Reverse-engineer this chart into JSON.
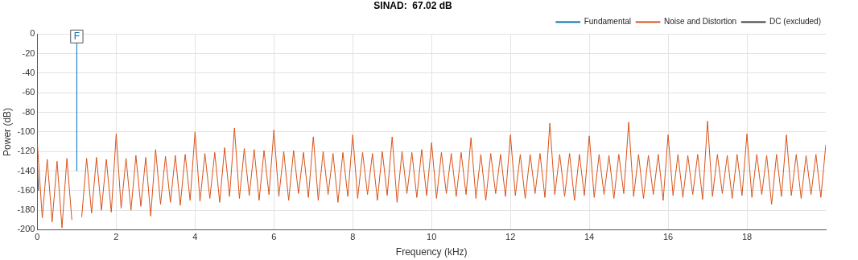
{
  "chart_data": {
    "type": "line",
    "title": "SINAD:  67.02 dB",
    "xlabel": "Frequency (kHz)",
    "ylabel": "Power (dB)",
    "xlim": [
      0,
      20
    ],
    "xticks": [
      0,
      2,
      4,
      6,
      8,
      10,
      12,
      14,
      16,
      18
    ],
    "ylim": [
      -200,
      0
    ],
    "yticks": [
      -200,
      -180,
      -160,
      -140,
      -120,
      -100,
      -80,
      -60,
      -40,
      -20,
      0
    ],
    "grid": true,
    "legend": "top right",
    "marker": "none",
    "line_style": "solid",
    "annotations": [
      {
        "text": "F",
        "x": 1,
        "y": -9
      }
    ],
    "series": [
      {
        "name": "Fundamental",
        "color": "#0072bd",
        "x": [
          1,
          1
        ],
        "values": [
          -140,
          -9
        ]
      },
      {
        "name": "Noise and Distortion",
        "color": "#d95319",
        "x": [
          0,
          0.125,
          0.25,
          0.375,
          0.5,
          0.625,
          0.75,
          0.875,
          1,
          1.125,
          1.25,
          1.375,
          1.5,
          1.625,
          1.75,
          1.875,
          2,
          2.125,
          2.25,
          2.375,
          2.5,
          2.625,
          2.75,
          2.875,
          3,
          3.125,
          3.25,
          3.375,
          3.5,
          3.625,
          3.75,
          3.875,
          4,
          4.125,
          4.25,
          4.375,
          4.5,
          4.625,
          4.75,
          4.875,
          5,
          5.125,
          5.25,
          5.375,
          5.5,
          5.625,
          5.75,
          5.875,
          6,
          6.125,
          6.25,
          6.375,
          6.5,
          6.625,
          6.75,
          6.875,
          7,
          7.125,
          7.25,
          7.375,
          7.5,
          7.625,
          7.75,
          7.875,
          8,
          8.125,
          8.25,
          8.375,
          8.5,
          8.625,
          8.75,
          8.875,
          9,
          9.125,
          9.25,
          9.375,
          9.5,
          9.625,
          9.75,
          9.875,
          10,
          10.125,
          10.25,
          10.375,
          10.5,
          10.625,
          10.75,
          10.875,
          11,
          11.125,
          11.25,
          11.375,
          11.5,
          11.625,
          11.75,
          11.875,
          12,
          12.125,
          12.25,
          12.375,
          12.5,
          12.625,
          12.75,
          12.875,
          13,
          13.125,
          13.25,
          13.375,
          13.5,
          13.625,
          13.75,
          13.875,
          14,
          14.125,
          14.25,
          14.375,
          14.5,
          14.625,
          14.75,
          14.875,
          15,
          15.125,
          15.25,
          15.375,
          15.5,
          15.625,
          15.75,
          15.875,
          16,
          16.125,
          16.25,
          16.375,
          16.5,
          16.625,
          16.75,
          16.875,
          17,
          17.125,
          17.25,
          17.375,
          17.5,
          17.625,
          17.75,
          17.875,
          18,
          18.125,
          18.25,
          18.375,
          18.5,
          18.625,
          18.75,
          18.875,
          19,
          19.125,
          19.25,
          19.375,
          19.5,
          19.625,
          19.75,
          19.875,
          20
        ],
        "values": [
          -112,
          -188,
          -128,
          -192,
          -130,
          -198,
          -127,
          -190,
          null,
          -187,
          -127,
          -183,
          -126,
          -180,
          -128,
          -182,
          -102,
          -178,
          -127,
          -180,
          -124,
          -176,
          -126,
          -186,
          -118,
          -174,
          -125,
          -172,
          -124,
          -175,
          -123,
          -170,
          -100,
          -171,
          -122,
          -168,
          -121,
          -172,
          -116,
          -166,
          -96,
          -168,
          -117,
          -165,
          -118,
          -170,
          -119,
          -164,
          -98,
          -166,
          -120,
          -170,
          -119,
          -163,
          -121,
          -167,
          -105,
          -170,
          -120,
          -164,
          -122,
          -172,
          -121,
          -166,
          -103,
          -168,
          -121,
          -164,
          -122,
          -170,
          -120,
          -165,
          -105,
          -172,
          -120,
          -163,
          -121,
          -167,
          -118,
          -165,
          -111,
          -168,
          -121,
          -163,
          -122,
          -166,
          -121,
          -164,
          -106,
          -168,
          -123,
          -170,
          -122,
          -163,
          -123,
          -166,
          -103,
          -165,
          -123,
          -168,
          -123,
          -163,
          -122,
          -167,
          -91,
          -164,
          -123,
          -166,
          -122,
          -170,
          -123,
          -165,
          -104,
          -167,
          -123,
          -164,
          -124,
          -168,
          -123,
          -163,
          -90,
          -166,
          -123,
          -168,
          -124,
          -164,
          -123,
          -170,
          -103,
          -165,
          -123,
          -167,
          -124,
          -164,
          -123,
          -169,
          -89,
          -166,
          -123,
          -163,
          -124,
          -168,
          -123,
          -165,
          -102,
          -167,
          -123,
          -164,
          -124,
          -174,
          -123,
          -166,
          -103,
          -165,
          -123,
          -168,
          -124,
          -164,
          -123,
          -167,
          -113
        ]
      },
      {
        "name": "DC (excluded)",
        "color": "#404040",
        "x": [
          0,
          0.03
        ],
        "values": [
          -135,
          -160
        ]
      }
    ]
  }
}
